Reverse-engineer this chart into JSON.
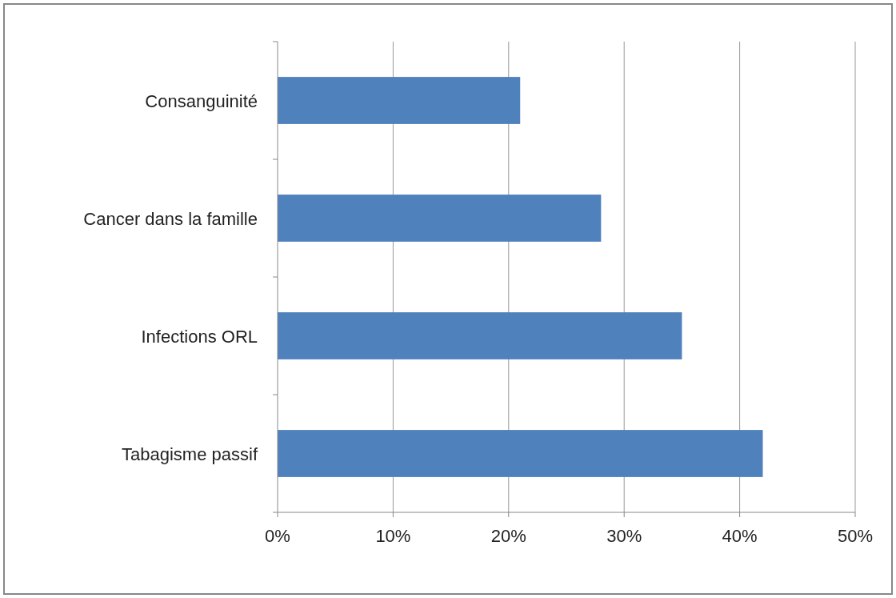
{
  "chart_data": {
    "type": "bar",
    "orientation": "horizontal",
    "categories": [
      "Consanguinité",
      "Cancer dans la famille",
      "Infections ORL",
      "Tabagisme passif"
    ],
    "values": [
      21,
      28,
      35,
      42
    ],
    "color": "#4f81bd",
    "xlim": [
      0,
      50
    ],
    "xticks": [
      {
        "value": 0,
        "label": "0%"
      },
      {
        "value": 10,
        "label": "10%"
      },
      {
        "value": 20,
        "label": "20%"
      },
      {
        "value": 30,
        "label": "30%"
      },
      {
        "value": 40,
        "label": "40%"
      },
      {
        "value": 50,
        "label": "50%"
      }
    ],
    "grid": "x"
  }
}
